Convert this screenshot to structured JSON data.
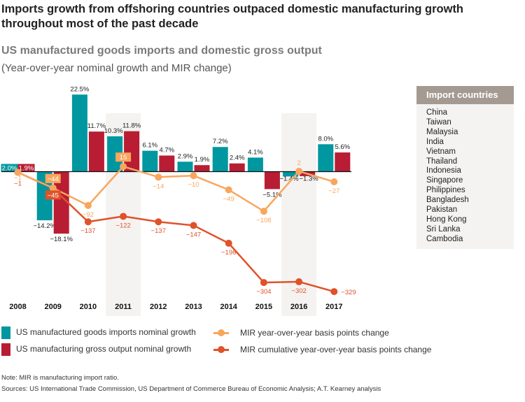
{
  "title": "Imports growth from offshoring countries outpaced domestic manufacturing growth throughout most of the past decade",
  "subtitle": "US manufactured goods imports and domestic gross output",
  "subtitle2": "(Year-over-year nominal growth and MIR change)",
  "sidebar": {
    "header": "Import countries",
    "countries": [
      "China",
      "Taiwan",
      "Malaysia",
      "India",
      "Vietnam",
      "Thailand",
      "Indonesia",
      "Singapore",
      "Philippines",
      "Bangladesh",
      "Pakistan",
      "Hong Kong",
      "Sri Lanka",
      "Cambodia"
    ]
  },
  "chart_data": {
    "type": "bar+line",
    "categories": [
      "2008",
      "2009",
      "2010",
      "2011",
      "2012",
      "2013",
      "2014",
      "2015",
      "2016",
      "2017"
    ],
    "highlighted_categories": [
      "2011",
      "2016"
    ],
    "bar_series": [
      {
        "name": "US manufactured goods imports nominal growth",
        "color": "#0097a0",
        "values": [
          2.0,
          -14.2,
          22.5,
          10.3,
          6.1,
          2.9,
          7.2,
          4.1,
          -1.4,
          8.0
        ],
        "labels": [
          "2.0%",
          "−14.2%",
          "22.5%",
          "10.3%",
          "6.1%",
          "2.9%",
          "7.2%",
          "4.1%",
          "−1.4%",
          "8.0%"
        ]
      },
      {
        "name": "US manufacturing gross output nominal growth",
        "color": "#b81d34",
        "values": [
          1.9,
          -18.1,
          11.7,
          11.8,
          4.7,
          1.9,
          2.4,
          -5.1,
          -1.3,
          5.6
        ],
        "labels": [
          "1.9%",
          "−18.1%",
          "11.7%",
          "11.8%",
          "4.7%",
          "1.9%",
          "2.4%",
          "−5.1%",
          "−1.3%",
          "5.6%"
        ]
      }
    ],
    "line_series": [
      {
        "name": "MIR year-over-year basis points change",
        "color": "#f8a65e",
        "values": [
          -1,
          -44,
          -92,
          15,
          -14,
          -10,
          -49,
          -108,
          2,
          -27
        ],
        "labels": [
          "−1",
          "−44",
          "−92",
          "15",
          "−14",
          "−10",
          "−49",
          "−108",
          "2",
          "−27"
        ]
      },
      {
        "name": "MIR cumulative year-over-year basis points change",
        "color": "#e0522a",
        "values": [
          -1,
          -45,
          -137,
          -122,
          -137,
          -147,
          -196,
          -304,
          -302,
          -329
        ],
        "labels": [
          "−1",
          "−45",
          "−137",
          "−122",
          "−137",
          "−147",
          "−196",
          "−304",
          "−302",
          "−329"
        ]
      }
    ]
  },
  "note": "Note: MIR is manufacturing import ratio.",
  "sources": "Sources: US International Trade Commission, US Department of Commerce Bureau of Economic Analysis; A.T. Kearney analysis"
}
